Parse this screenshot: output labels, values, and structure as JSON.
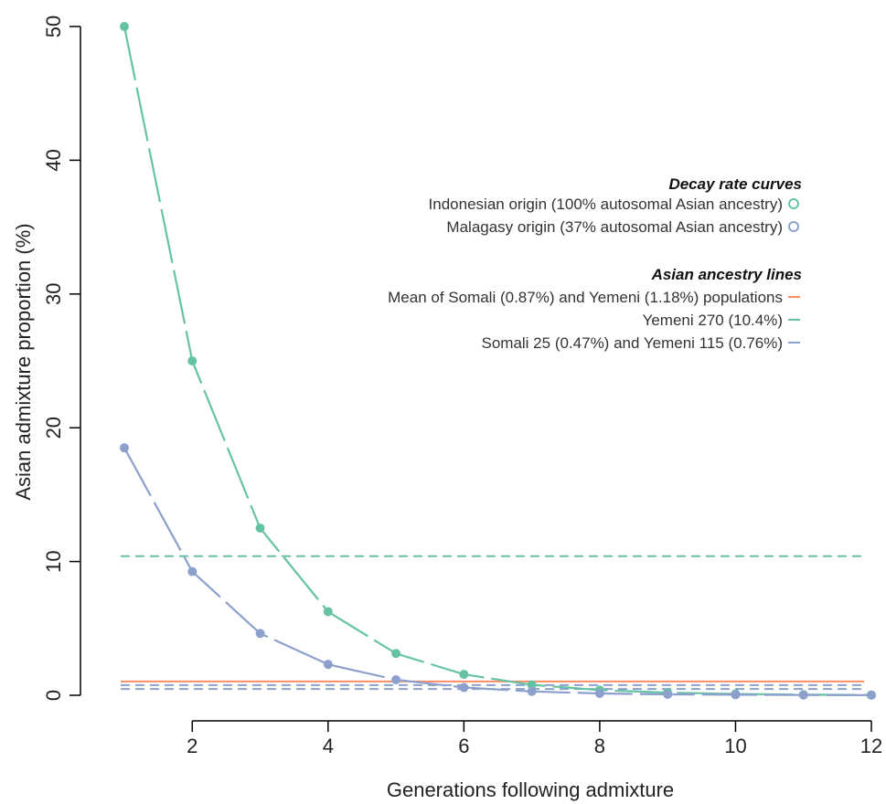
{
  "chart_data": {
    "type": "line",
    "xlabel": "Generations following admixture",
    "ylabel": "Asian admixture proportion (%)",
    "xlim": [
      1,
      12
    ],
    "ylim": [
      0,
      50
    ],
    "x_ticks": [
      2,
      4,
      6,
      8,
      10,
      12
    ],
    "y_ticks": [
      0,
      10,
      20,
      30,
      40,
      50
    ],
    "grid": false,
    "legend_position": "top-right",
    "colors": {
      "green": "#66c2a5",
      "purple": "#8da0cb",
      "orange": "#fc8d62"
    },
    "series": [
      {
        "name": "Indonesian origin (100% autosomal Asian ancestry)",
        "color": "#66c2a5",
        "x": [
          1,
          2,
          3,
          4,
          5,
          6,
          7,
          8,
          9,
          10,
          11,
          12
        ],
        "values": [
          50,
          25,
          12.5,
          6.25,
          3.125,
          1.5625,
          0.78,
          0.39,
          0.2,
          0.1,
          0.05,
          0.02
        ]
      },
      {
        "name": "Malagasy origin (37% autosomal Asian ancestry)",
        "color": "#8da0cb",
        "x": [
          1,
          2,
          3,
          4,
          5,
          6,
          7,
          8,
          9,
          10,
          11,
          12
        ],
        "values": [
          18.5,
          9.25,
          4.625,
          2.31,
          1.16,
          0.58,
          0.29,
          0.14,
          0.07,
          0.04,
          0.02,
          0.01
        ]
      }
    ],
    "hlines": [
      {
        "name": "Mean of Somali (0.87%) and Yemeni (1.18%) populations",
        "values": [
          1.03
        ],
        "color": "#fc8d62",
        "style": "solid"
      },
      {
        "name": "Yemeni 270 (10.4%)",
        "values": [
          10.4
        ],
        "color": "#66c2a5",
        "style": "dashed"
      },
      {
        "name": "Somali 25 (0.47%) and Yemeni 115 (0.76%)",
        "values": [
          0.47,
          0.76
        ],
        "color": "#8da0cb",
        "style": "dashed"
      }
    ],
    "legend": {
      "curves_heading": "Decay rate curves",
      "lines_heading": "Asian ancestry lines"
    }
  }
}
